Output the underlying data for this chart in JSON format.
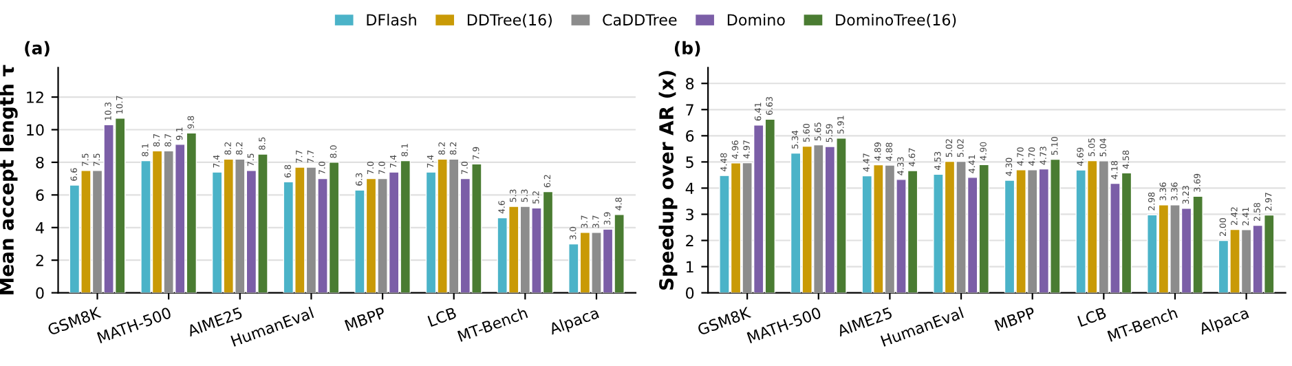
{
  "chart_data": [
    {
      "type": "bar",
      "title": "(a)",
      "ylabel": "Mean accept length τ",
      "categories": [
        "GSM8K",
        "MATH-500",
        "AIME25",
        "HumanEval",
        "MBPP",
        "LCB",
        "MT-Bench",
        "Alpaca"
      ],
      "ylim": [
        0,
        13.8
      ],
      "yticks": [
        0,
        2,
        4,
        6,
        8,
        10,
        12
      ],
      "grid": "y",
      "legend": "top",
      "series": [
        {
          "name": "DFlash",
          "color": "#4bb3c8",
          "values": [
            6.6,
            8.1,
            7.4,
            6.8,
            6.3,
            7.4,
            4.6,
            3.0
          ],
          "value_labels": [
            "6.6",
            "8.1",
            "7.4",
            "6.8",
            "6.3",
            "7.4",
            "4.6",
            "3.0"
          ]
        },
        {
          "name": "DDTree(16)",
          "color": "#c99a06",
          "values": [
            7.5,
            8.7,
            8.2,
            7.7,
            7.0,
            8.2,
            5.3,
            3.7
          ],
          "value_labels": [
            "7.5",
            "8.7",
            "8.2",
            "7.7",
            "7.0",
            "8.2",
            "5.3",
            "3.7"
          ]
        },
        {
          "name": "CaDDTree",
          "color": "#8c8c8c",
          "values": [
            7.5,
            8.7,
            8.2,
            7.7,
            7.0,
            8.2,
            5.3,
            3.7
          ],
          "value_labels": [
            "7.5",
            "8.7",
            "8.2",
            "7.7",
            "7.0",
            "8.2",
            "5.3",
            "3.7"
          ]
        },
        {
          "name": "Domino",
          "color": "#7b5ea7",
          "values": [
            10.3,
            9.1,
            7.5,
            7.0,
            7.4,
            7.0,
            5.2,
            3.9
          ],
          "value_labels": [
            "10.3",
            "9.1",
            "7.5",
            "7.0",
            "7.4",
            "7.0",
            "5.2",
            "3.9"
          ]
        },
        {
          "name": "DominoTree(16)",
          "color": "#4a7c32",
          "values": [
            10.7,
            9.8,
            8.5,
            8.0,
            8.1,
            7.9,
            6.2,
            4.8
          ],
          "value_labels": [
            "10.7",
            "9.8",
            "8.5",
            "8.0",
            "8.1",
            "7.9",
            "6.2",
            "4.8"
          ]
        }
      ]
    },
    {
      "type": "bar",
      "title": "(b)",
      "ylabel": "Speedup over AR (x)",
      "categories": [
        "GSM8K",
        "MATH-500",
        "AIME25",
        "HumanEval",
        "MBPP",
        "LCB",
        "MT-Bench",
        "Alpaca"
      ],
      "ylim": [
        0,
        8.6
      ],
      "yticks": [
        0,
        1,
        2,
        3,
        4,
        5,
        6,
        7,
        8
      ],
      "grid": "y",
      "series": [
        {
          "color": "#4bb3c8",
          "values": [
            4.48,
            5.34,
            4.47,
            4.53,
            4.3,
            4.69,
            2.98,
            2.0
          ],
          "value_labels": [
            "4.48",
            "5.34",
            "4.47",
            "4.53",
            "4.30",
            "4.69",
            "2.98",
            "2.00"
          ]
        },
        {
          "color": "#c99a06",
          "values": [
            4.96,
            5.6,
            4.89,
            5.02,
            4.7,
            5.05,
            3.36,
            2.42
          ],
          "value_labels": [
            "4.96",
            "5.60",
            "4.89",
            "5.02",
            "4.70",
            "5.05",
            "3.36",
            "2.42"
          ]
        },
        {
          "color": "#8c8c8c",
          "values": [
            4.97,
            5.65,
            4.88,
            5.02,
            4.7,
            5.04,
            3.36,
            2.41
          ],
          "value_labels": [
            "4.97",
            "5.65",
            "4.88",
            "5.02",
            "4.70",
            "5.04",
            "3.36",
            "2.41"
          ]
        },
        {
          "color": "#7b5ea7",
          "values": [
            6.41,
            5.59,
            4.33,
            4.41,
            4.73,
            4.18,
            3.23,
            2.58
          ],
          "value_labels": [
            "6.41",
            "5.59",
            "4.33",
            "4.41",
            "4.73",
            "4.18",
            "3.23",
            "2.58"
          ]
        },
        {
          "color": "#4a7c32",
          "values": [
            6.63,
            5.91,
            4.67,
            4.9,
            5.1,
            4.58,
            3.69,
            2.97
          ],
          "value_labels": [
            "6.63",
            "5.91",
            "4.67",
            "4.90",
            "5.10",
            "4.58",
            "3.69",
            "2.97"
          ]
        }
      ]
    }
  ]
}
